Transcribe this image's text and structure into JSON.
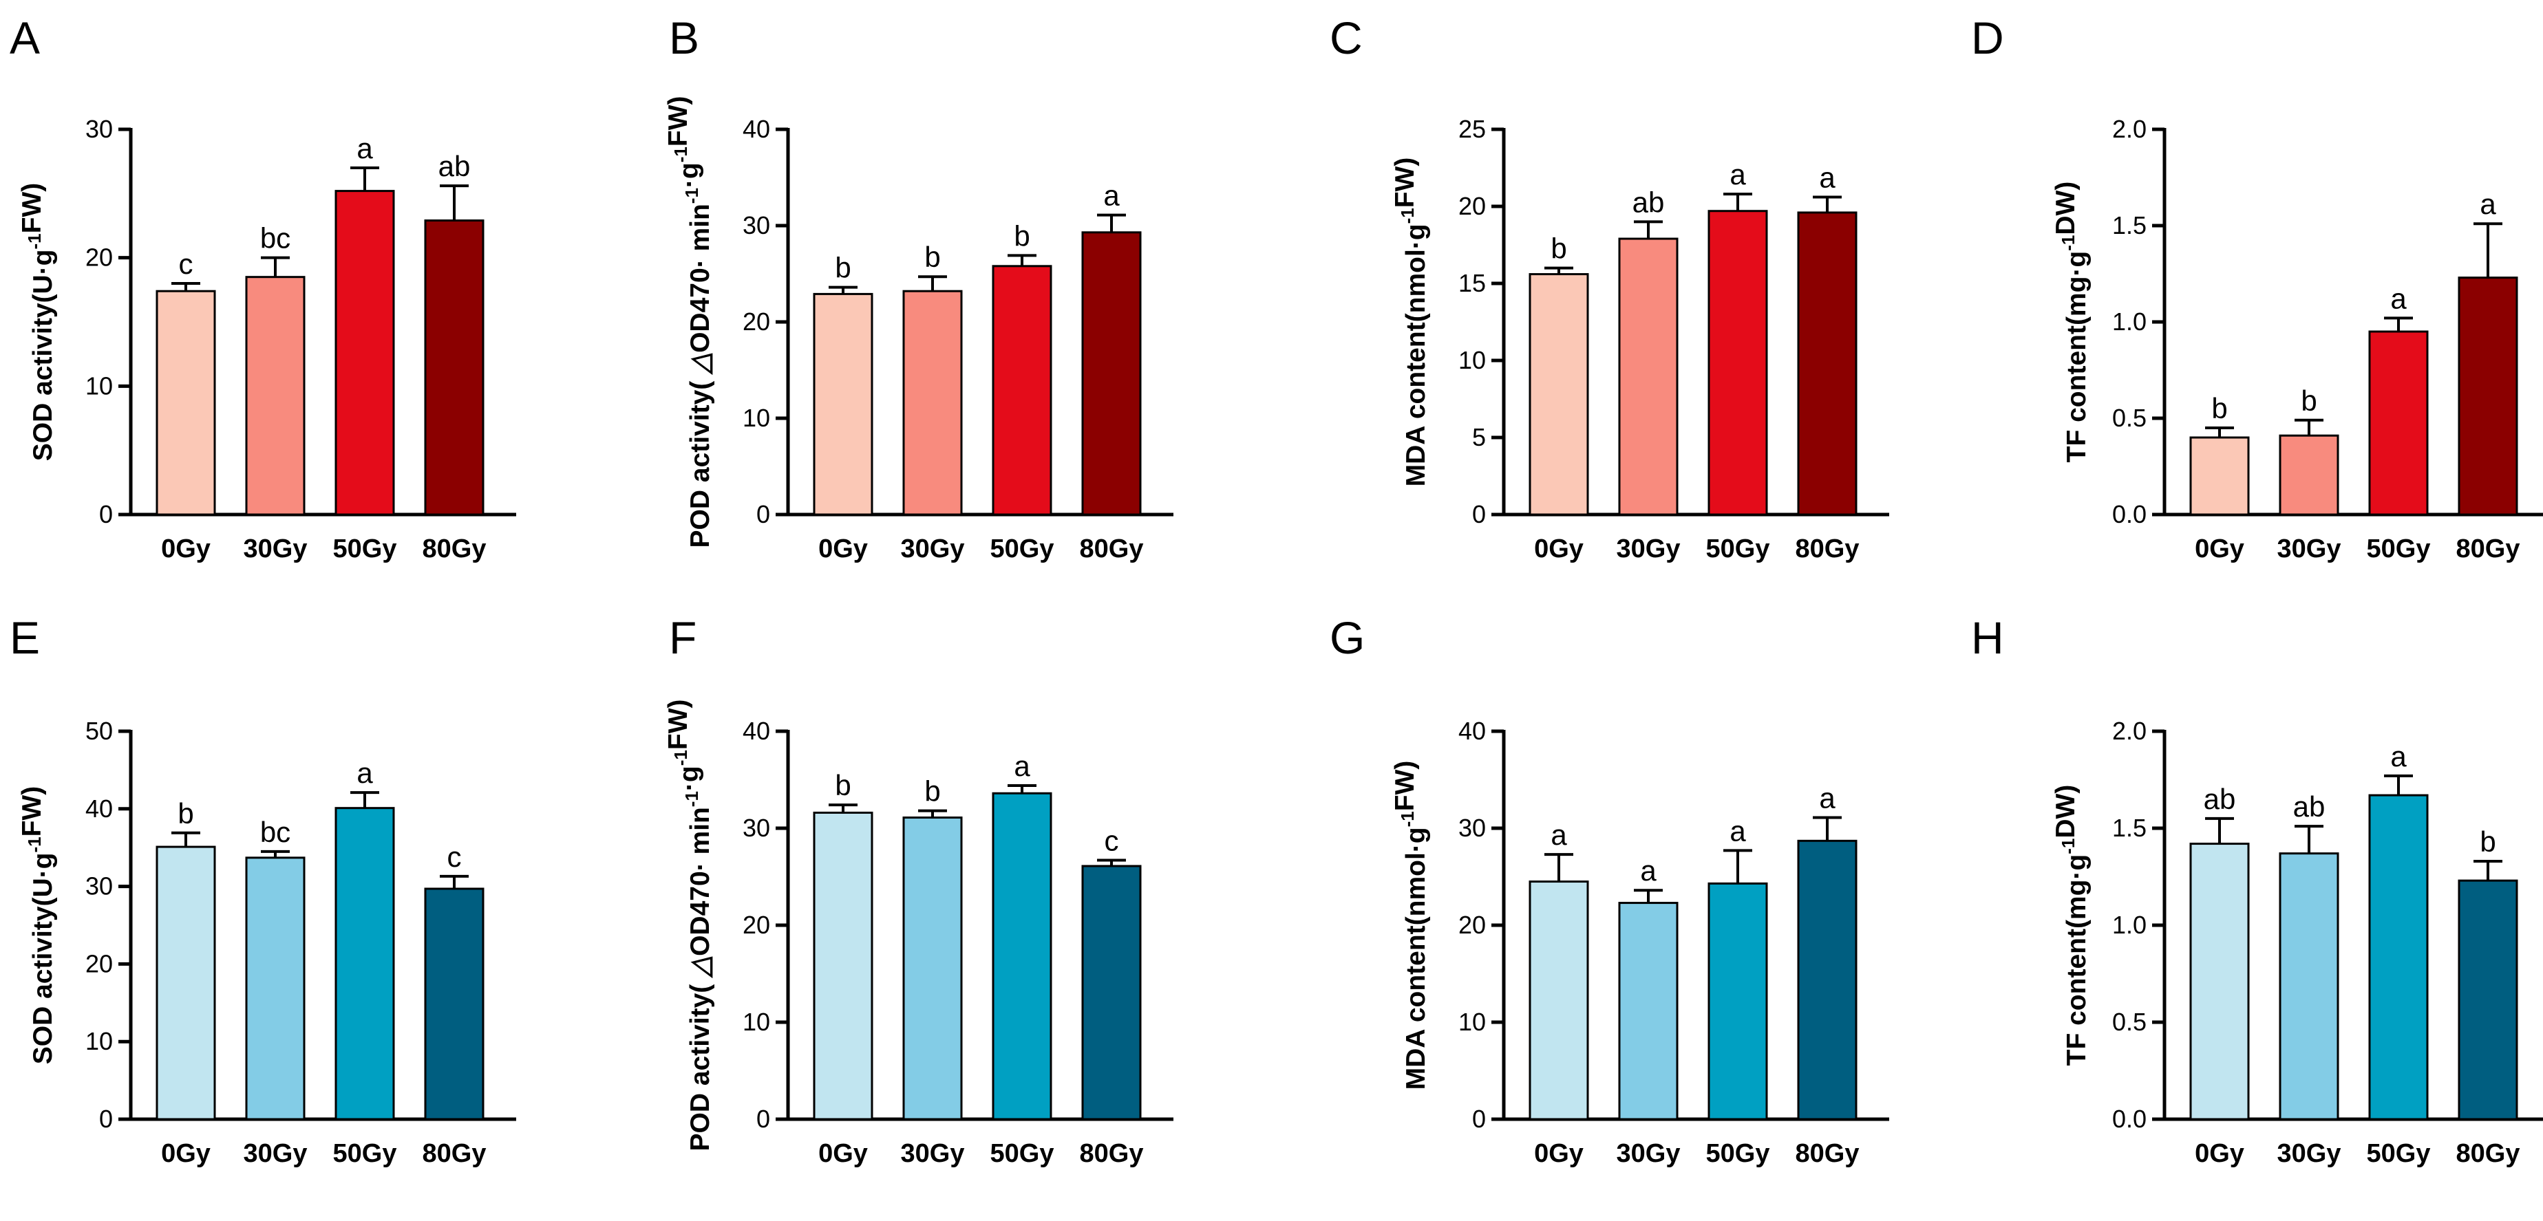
{
  "chart_data": [
    {
      "type": "bar",
      "panel": "A",
      "group": "top",
      "ylabel": [
        {
          "t": "SOD activity(U·g"
        },
        {
          "t": "-1",
          "sup": true
        },
        {
          "t": "FW)"
        }
      ],
      "ylim": [
        0,
        30
      ],
      "yticks": [
        0,
        10,
        20,
        30
      ],
      "categories": [
        "0Gy",
        "30Gy",
        "50Gy",
        "80Gy"
      ],
      "values": [
        17.4,
        18.5,
        25.2,
        22.9
      ],
      "errors": [
        0.6,
        1.5,
        1.8,
        2.7
      ],
      "significance": [
        "c",
        "bc",
        "a",
        "ab"
      ]
    },
    {
      "type": "bar",
      "panel": "B",
      "group": "top",
      "ylabel": [
        {
          "t": "POD activity( "
        },
        {
          "t": "△",
          "ital": true
        },
        {
          "t": "OD470· min"
        },
        {
          "t": "-1",
          "sup": true
        },
        {
          "t": "·g"
        },
        {
          "t": "-1",
          "sup": true
        },
        {
          "t": "FW)"
        }
      ],
      "ylim": [
        0,
        40
      ],
      "yticks": [
        0,
        10,
        20,
        30,
        40
      ],
      "categories": [
        "0Gy",
        "30Gy",
        "50Gy",
        "80Gy"
      ],
      "values": [
        22.9,
        23.2,
        25.8,
        29.3
      ],
      "errors": [
        0.7,
        1.5,
        1.1,
        1.8
      ],
      "significance": [
        "b",
        "b",
        "b",
        "a"
      ]
    },
    {
      "type": "bar",
      "panel": "C",
      "group": "top",
      "ylabel": [
        {
          "t": "MDA content(nmol·g"
        },
        {
          "t": "-1",
          "sup": true
        },
        {
          "t": "FW)"
        }
      ],
      "ylim": [
        0,
        25
      ],
      "yticks": [
        0,
        5,
        10,
        15,
        20,
        25
      ],
      "categories": [
        "0Gy",
        "30Gy",
        "50Gy",
        "80Gy"
      ],
      "values": [
        15.6,
        17.9,
        19.7,
        19.6
      ],
      "errors": [
        0.4,
        1.1,
        1.1,
        1.0
      ],
      "significance": [
        "b",
        "ab",
        "a",
        "a"
      ]
    },
    {
      "type": "bar",
      "panel": "D",
      "group": "top",
      "ylabel": [
        {
          "t": "TF content(mg·g"
        },
        {
          "t": "-1",
          "sup": true
        },
        {
          "t": "DW)"
        }
      ],
      "ylim": [
        0,
        2.0
      ],
      "yticks": [
        "0.0",
        "0.5",
        "1.0",
        "1.5",
        "2.0"
      ],
      "categories": [
        "0Gy",
        "30Gy",
        "50Gy",
        "80Gy"
      ],
      "values": [
        0.4,
        0.41,
        0.95,
        1.23
      ],
      "errors": [
        0.05,
        0.08,
        0.07,
        0.28
      ],
      "significance": [
        "b",
        "b",
        "a",
        "a"
      ]
    },
    {
      "type": "bar",
      "panel": "E",
      "group": "bottom",
      "ylabel": [
        {
          "t": "SOD activity(U·g"
        },
        {
          "t": "-1",
          "sup": true
        },
        {
          "t": "FW)"
        }
      ],
      "ylim": [
        0,
        50
      ],
      "yticks": [
        0,
        10,
        20,
        30,
        40,
        50
      ],
      "categories": [
        "0Gy",
        "30Gy",
        "50Gy",
        "80Gy"
      ],
      "values": [
        35.1,
        33.7,
        40.1,
        29.7
      ],
      "errors": [
        1.8,
        0.8,
        2.0,
        1.6
      ],
      "significance": [
        "b",
        "bc",
        "a",
        "c"
      ]
    },
    {
      "type": "bar",
      "panel": "F",
      "group": "bottom",
      "ylabel": [
        {
          "t": "POD activity( "
        },
        {
          "t": "△",
          "ital": true
        },
        {
          "t": "OD470· min"
        },
        {
          "t": "-1",
          "sup": true
        },
        {
          "t": "·g"
        },
        {
          "t": "-1",
          "sup": true
        },
        {
          "t": "FW)"
        }
      ],
      "ylim": [
        0,
        40
      ],
      "yticks": [
        0,
        10,
        20,
        30,
        40
      ],
      "categories": [
        "0Gy",
        "30Gy",
        "50Gy",
        "80Gy"
      ],
      "values": [
        31.6,
        31.1,
        33.6,
        26.1
      ],
      "errors": [
        0.8,
        0.7,
        0.8,
        0.6
      ],
      "significance": [
        "b",
        "b",
        "a",
        "c"
      ]
    },
    {
      "type": "bar",
      "panel": "G",
      "group": "bottom",
      "ylabel": [
        {
          "t": "MDA content(nmol·g"
        },
        {
          "t": "-1",
          "sup": true
        },
        {
          "t": "FW)"
        }
      ],
      "ylim": [
        0,
        40
      ],
      "yticks": [
        0,
        10,
        20,
        30,
        40
      ],
      "categories": [
        "0Gy",
        "30Gy",
        "50Gy",
        "80Gy"
      ],
      "values": [
        24.5,
        22.3,
        24.3,
        28.7
      ],
      "errors": [
        2.8,
        1.3,
        3.4,
        2.4
      ],
      "significance": [
        "a",
        "a",
        "a",
        "a"
      ]
    },
    {
      "type": "bar",
      "panel": "H",
      "group": "bottom",
      "ylabel": [
        {
          "t": "TF content(mg·g"
        },
        {
          "t": "-1",
          "sup": true
        },
        {
          "t": "DW)"
        }
      ],
      "ylim": [
        0,
        2.0
      ],
      "yticks": [
        "0.0",
        "0.5",
        "1.0",
        "1.5",
        "2.0"
      ],
      "categories": [
        "0Gy",
        "30Gy",
        "50Gy",
        "80Gy"
      ],
      "values": [
        1.42,
        1.37,
        1.67,
        1.23
      ],
      "errors": [
        0.13,
        0.14,
        0.1,
        0.1
      ],
      "significance": [
        "ab",
        "ab",
        "a",
        "b"
      ]
    }
  ],
  "palettes": {
    "top": [
      "#fbc8b6",
      "#f88b7e",
      "#e40c1a",
      "#8b0000"
    ],
    "bottom": [
      "#c1e5f0",
      "#83cce6",
      "#00a0c2",
      "#005e80"
    ]
  }
}
